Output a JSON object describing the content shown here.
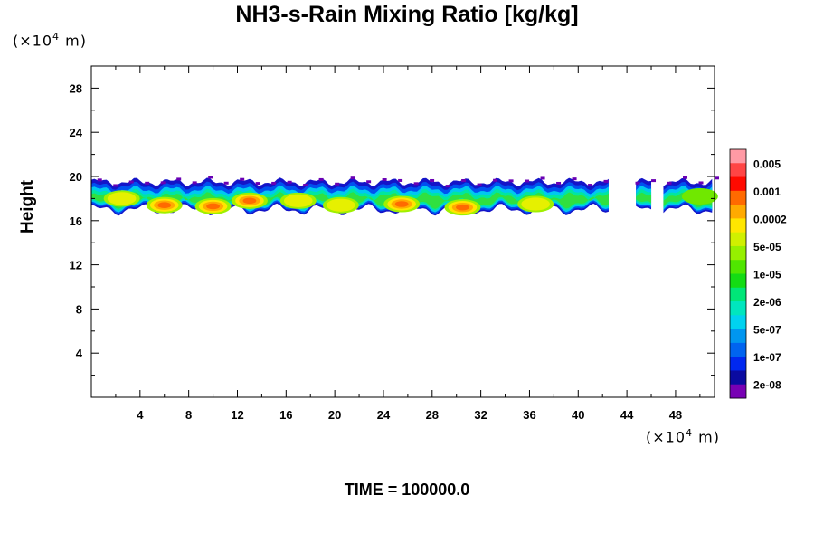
{
  "chart_data": {
    "type": "heatmap",
    "title": "NH3-s-Rain Mixing Ratio [kg/kg]",
    "ylabel": "Height",
    "xlabel": "",
    "x_unit_prefix": "(×10",
    "x_unit_exp": "4",
    "x_unit_suffix": " m)",
    "y_unit_prefix": "(×10",
    "y_unit_exp": "4",
    "y_unit_suffix": " m)",
    "xlim": [
      0,
      51.2
    ],
    "ylim": [
      0,
      30
    ],
    "x_ticks": [
      4,
      8,
      12,
      16,
      20,
      24,
      28,
      32,
      36,
      40,
      44,
      48
    ],
    "y_ticks": [
      4,
      8,
      12,
      16,
      20,
      24,
      28
    ],
    "colorbar": {
      "labels": [
        "0.005",
        "0.001",
        "0.0002",
        "5e-05",
        "1e-05",
        "2e-06",
        "5e-07",
        "1e-07",
        "2e-08"
      ],
      "colors": [
        "#ff9aa5",
        "#ff4545",
        "#ff0a00",
        "#ff6a00",
        "#ffaa00",
        "#ffe600",
        "#d0f000",
        "#96f000",
        "#50e600",
        "#14dc14",
        "#00e678",
        "#00e6be",
        "#00d2f0",
        "#0096f0",
        "#0064f0",
        "#0028f0",
        "#0a0aa0",
        "#7800b4"
      ]
    },
    "layer": {
      "bottom_km_x1e4": 16.5,
      "top_km_x1e4": 19.8,
      "gaps_x": [
        [
          42.6,
          44.6
        ],
        [
          46.0,
          47.0
        ]
      ],
      "cores": [
        {
          "x": 6.0,
          "y": 17.4,
          "peak": "0.0002"
        },
        {
          "x": 10.0,
          "y": 17.3,
          "peak": "0.0002"
        },
        {
          "x": 13.0,
          "y": 17.8,
          "peak": "0.0002"
        },
        {
          "x": 17.0,
          "y": 17.8,
          "peak": "5e-05"
        },
        {
          "x": 20.5,
          "y": 17.4,
          "peak": "5e-05"
        },
        {
          "x": 25.5,
          "y": 17.5,
          "peak": "0.0002"
        },
        {
          "x": 30.5,
          "y": 17.2,
          "peak": "0.0002"
        },
        {
          "x": 36.5,
          "y": 17.5,
          "peak": "5e-05"
        },
        {
          "x": 2.5,
          "y": 18.0,
          "peak": "5e-05"
        },
        {
          "x": 50.0,
          "y": 18.2,
          "peak": "1e-05"
        }
      ]
    }
  },
  "time_label": "TIME = 100000.0"
}
